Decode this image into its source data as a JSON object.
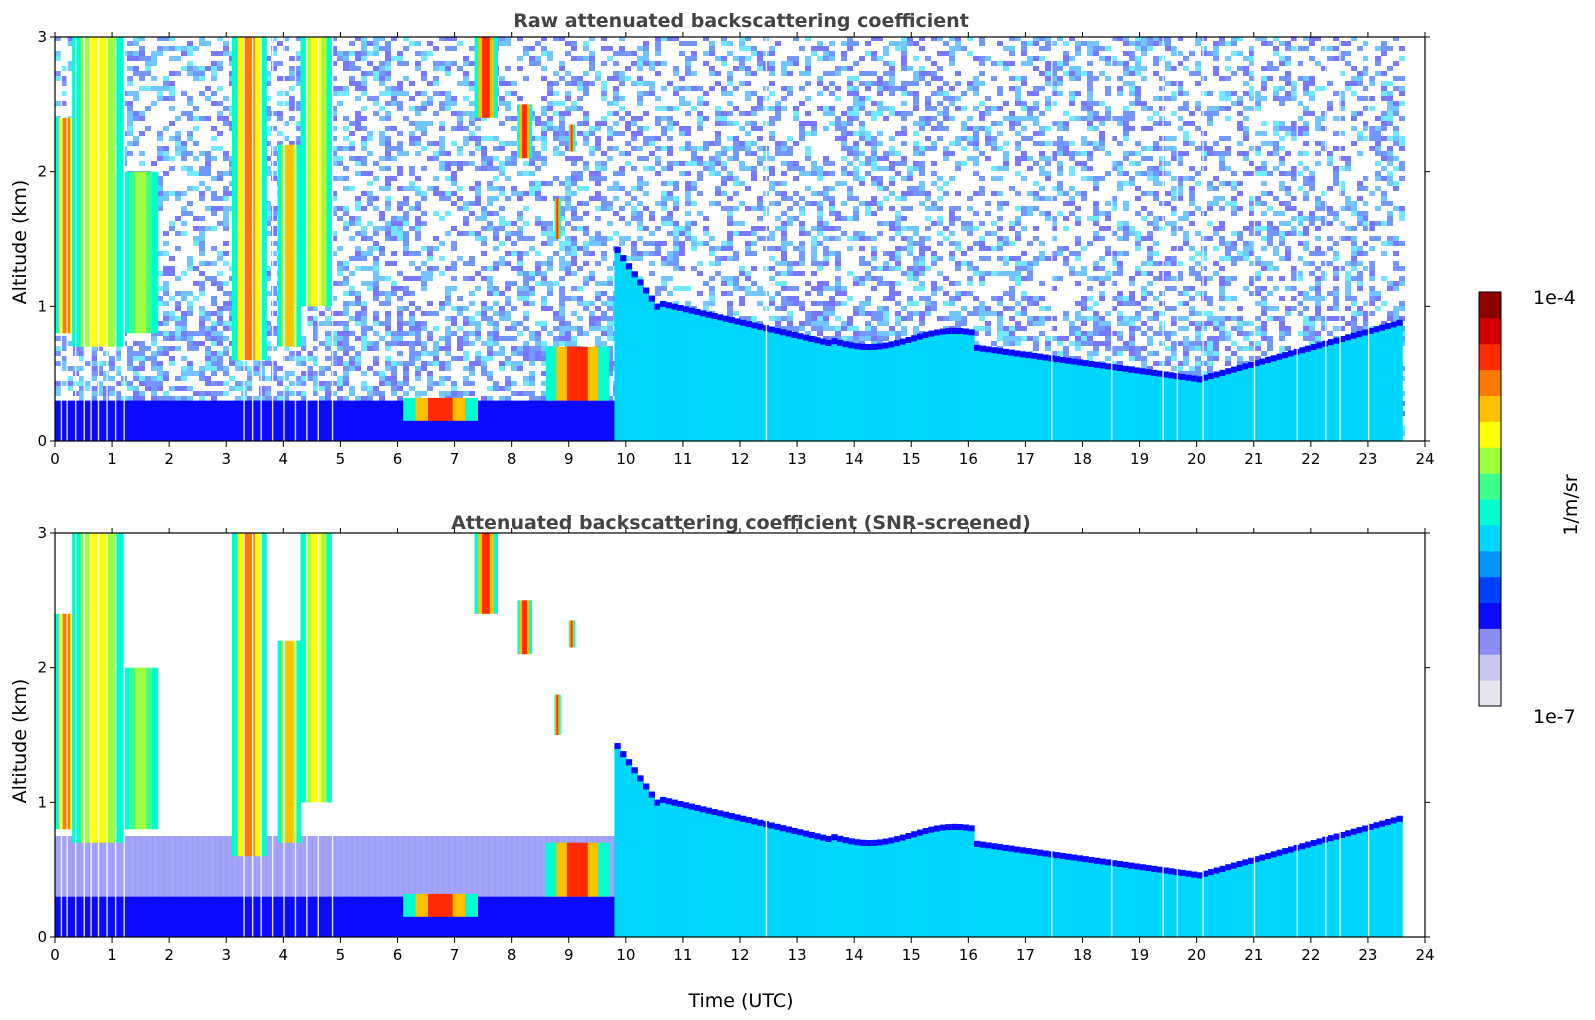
{
  "chart_data": [
    {
      "type": "heatmap",
      "title": "Raw attenuated backscattering coefficient",
      "xlabel": "",
      "ylabel": "Altitude (km)",
      "xlim": [
        0,
        24
      ],
      "ylim": [
        0,
        3
      ],
      "xticks": [
        "0",
        "1",
        "2",
        "3",
        "4",
        "5",
        "6",
        "7",
        "8",
        "9",
        "10",
        "11",
        "12",
        "13",
        "14",
        "15",
        "16",
        "17",
        "18",
        "19",
        "20",
        "21",
        "22",
        "23",
        "24"
      ],
      "yticks": [
        "0",
        "1",
        "2",
        "3"
      ],
      "x_units": "hours UTC",
      "y_units": "km",
      "data_extent_x": [
        0,
        23.55
      ],
      "features": [
        {
          "x": [
            0.0,
            0.4
          ],
          "y": [
            0.8,
            2.4
          ],
          "level": 0.85
        },
        {
          "x": [
            0.3,
            1.2
          ],
          "y": [
            0.7,
            3.0
          ],
          "level": 0.7
        },
        {
          "x": [
            1.2,
            1.8
          ],
          "y": [
            0.8,
            2.0
          ],
          "level": 0.6
        },
        {
          "x": [
            3.1,
            3.7
          ],
          "y": [
            0.6,
            3.0
          ],
          "level": 0.85
        },
        {
          "x": [
            3.9,
            4.3
          ],
          "y": [
            0.7,
            2.2
          ],
          "level": 0.75
        },
        {
          "x": [
            4.3,
            4.85
          ],
          "y": [
            1.0,
            3.0
          ],
          "level": 0.7
        },
        {
          "x": [
            6.1,
            7.4
          ],
          "y": [
            0.15,
            0.32
          ],
          "level": 0.9
        },
        {
          "x": [
            7.35,
            7.75
          ],
          "y": [
            2.4,
            3.0
          ],
          "level": 0.9
        },
        {
          "x": [
            8.1,
            8.35
          ],
          "y": [
            2.1,
            2.5
          ],
          "level": 0.9
        },
        {
          "x": [
            8.6,
            9.7
          ],
          "y": [
            0.3,
            0.7
          ],
          "level": 0.9
        },
        {
          "x": [
            9.0,
            9.1
          ],
          "y": [
            2.15,
            2.35
          ],
          "level": 0.9
        },
        {
          "x": [
            8.75,
            8.85
          ],
          "y": [
            1.5,
            1.8
          ],
          "level": 0.9
        }
      ]
    },
    {
      "type": "heatmap",
      "title": "Attenuated backscattering coefficient (SNR-screened)",
      "xlabel": "Time (UTC)",
      "ylabel": "Altitude (km)",
      "xlim": [
        0,
        24
      ],
      "ylim": [
        0,
        3
      ],
      "xticks": [
        "0",
        "1",
        "2",
        "3",
        "4",
        "5",
        "6",
        "7",
        "8",
        "9",
        "10",
        "11",
        "12",
        "13",
        "14",
        "15",
        "16",
        "17",
        "18",
        "19",
        "20",
        "21",
        "22",
        "23",
        "24"
      ],
      "yticks": [
        "0",
        "1",
        "2",
        "3"
      ],
      "x_units": "hours UTC",
      "y_units": "km",
      "data_extent_x": [
        0,
        23.55
      ]
    }
  ],
  "colorbar": {
    "label": "1/m/sr",
    "min_label": "1e-7",
    "max_label": "1e-4",
    "scale": "log",
    "colormap": [
      "#e6e6f2",
      "#c8c8f0",
      "#8c8cf5",
      "#0a0aff",
      "#0040ff",
      "#0096ff",
      "#00d7ff",
      "#00ffd0",
      "#3cff8c",
      "#a0ff3c",
      "#ffff00",
      "#ffc000",
      "#ff7800",
      "#ff2a00",
      "#d20000",
      "#8c0000"
    ]
  }
}
